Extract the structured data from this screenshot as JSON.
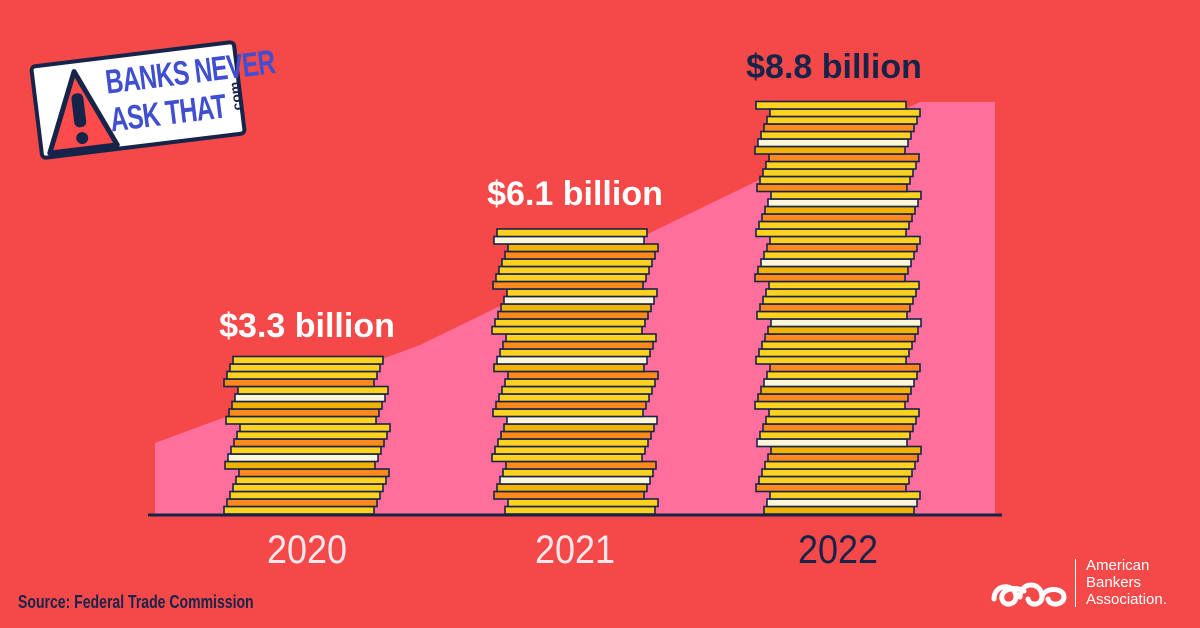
{
  "logo": {
    "line1": "BANKS NEVER",
    "line2": "ASK THAT",
    "suffix": ".com",
    "icon": "warning-triangle-icon"
  },
  "source": "Source: Federal Trade Commission",
  "org": {
    "name_line1": "American",
    "name_line2": "Bankers",
    "name_line3": "Association.",
    "icon": "aba-logo-icon"
  },
  "colors": {
    "background": "#f54848",
    "area": "#ff6f9c",
    "dark": "#17244a",
    "label_light": "#ffffff",
    "year_light": "#ffe8ec",
    "coin_yellow": "#ffd21f",
    "coin_gold": "#f2b300",
    "coin_orange": "#ff8a1c",
    "coin_cream": "#fff6d8"
  },
  "chart_data": {
    "type": "bar",
    "title": "",
    "xlabel": "",
    "ylabel": "",
    "categories": [
      "2020",
      "2021",
      "2022"
    ],
    "values": [
      3.3,
      6.1,
      8.8
    ],
    "labels": [
      "$3.3 billion",
      "$6.1 billion",
      "$8.8 billion"
    ],
    "unit": "billion USD",
    "ylim": [
      0,
      8.8
    ],
    "grid": false,
    "style": "stacked coins with trend area behind"
  }
}
